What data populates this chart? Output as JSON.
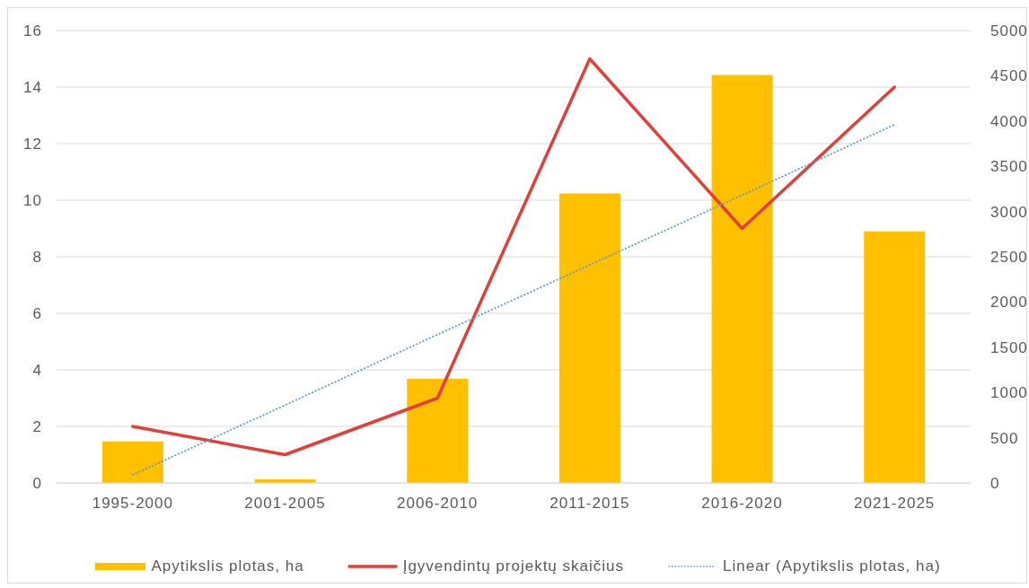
{
  "chart_data": {
    "type": "bar",
    "categories": [
      "1995-2000",
      "2001-2005",
      "2006-2010",
      "2011-2015",
      "2016-2020",
      "2021-2025"
    ],
    "series": [
      {
        "name": "Apytikslis plotas, ha",
        "axis": "y2",
        "color": "#ffc000",
        "values": [
          460,
          40,
          1150,
          3200,
          4510,
          2780
        ]
      },
      {
        "name": "Įgyvendintų projektų skaičius",
        "type": "line",
        "color": "#e0403a",
        "values": [
          2,
          1,
          3,
          15,
          9,
          14
        ]
      },
      {
        "name": "Linear (Apytikslis plotas, ha)",
        "type": "line",
        "axis": "y2",
        "color": "#5b9bd5",
        "line_style": "dotted",
        "values": [
          90,
          860,
          1640,
          2410,
          3180,
          3960
        ]
      }
    ],
    "ylim": [
      0,
      16
    ],
    "yticks": [
      0,
      2,
      4,
      6,
      8,
      10,
      12,
      14,
      16
    ],
    "y2lim": [
      0,
      5000
    ],
    "y2ticks": [
      0,
      500,
      1000,
      1500,
      2000,
      2500,
      3000,
      3500,
      4000,
      4500,
      5000
    ],
    "grid": "y",
    "legend": "bottom"
  }
}
